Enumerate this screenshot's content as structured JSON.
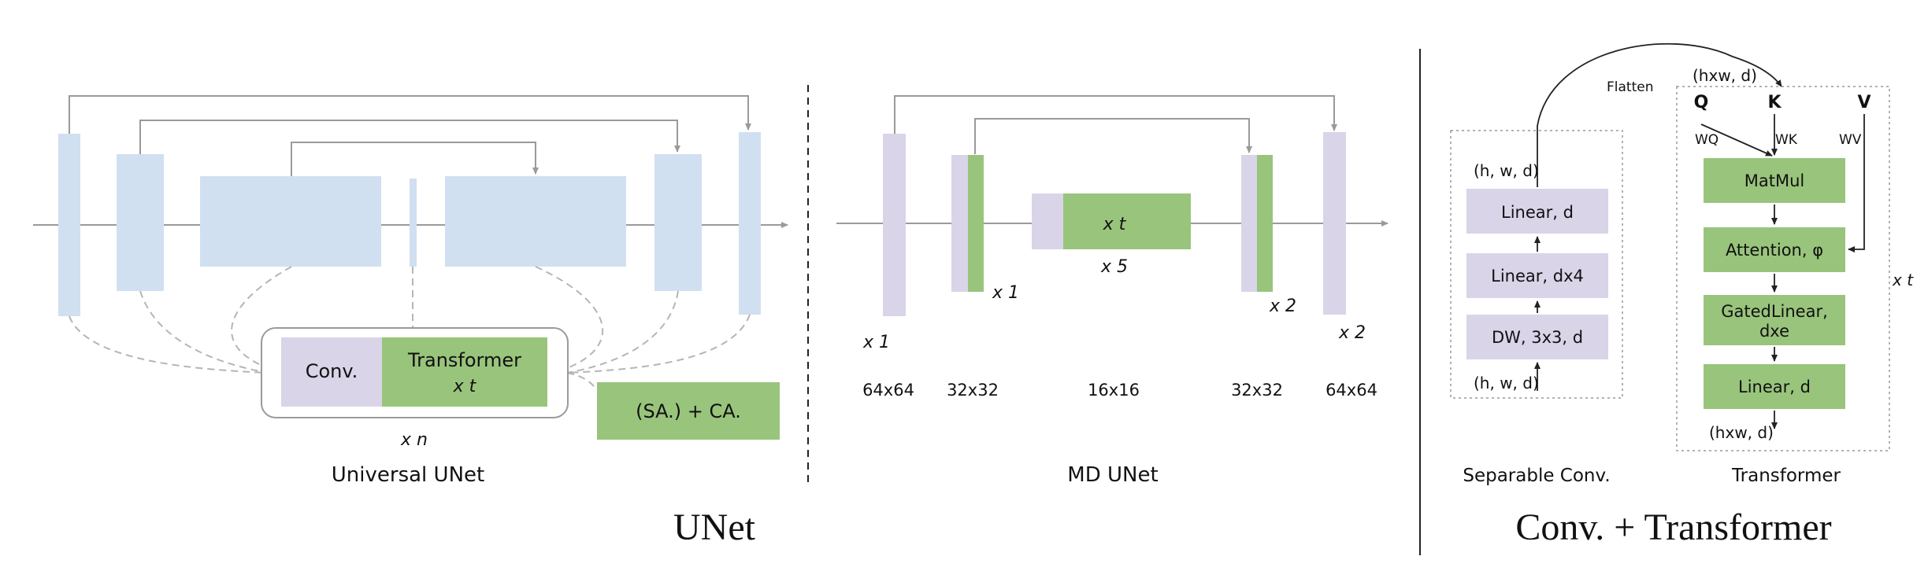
{
  "colors": {
    "blue_block": "#d0e0f1",
    "lavender_block": "#d9d4e8",
    "green_block": "#99c47c",
    "arrow_gray": "#9a9a9a",
    "dashed_gray": "#b5b5b5",
    "divider": "#222222"
  },
  "universal_unet": {
    "caption": "Universal UNet",
    "conv_label": "Conv.",
    "transformer_label": "Transformer",
    "transformer_repeat": "x t",
    "block_repeat": "x n",
    "attention_label": "(SA.) +  CA."
  },
  "md_unet": {
    "caption": "MD UNet",
    "repeats": {
      "enc1": "x 1",
      "enc2": "x 1",
      "mid": "x 5",
      "mid_inner": "x t",
      "dec2": "x 2",
      "dec1": "x 2"
    },
    "resolutions": [
      "64x64",
      "32x32",
      "16x16",
      "32x32",
      "64x64"
    ]
  },
  "unet_section_title": "UNet",
  "conv_transformer": {
    "section_title": "Conv. + Transformer",
    "separable_caption": "Separable Conv.",
    "transformer_caption": "Transformer",
    "flatten_label": "Flatten",
    "sep_input": "(h, w, d)",
    "sep_output": "(h, w, d)",
    "sep_layers": [
      "DW, 3x3, d",
      "Linear,  dx4",
      "Linear, d"
    ],
    "tr_input": "(hxw, d)",
    "tr_output": "(hxw, d)",
    "qkv": [
      "Q",
      "K",
      "V"
    ],
    "weights": [
      "WQ",
      "WK",
      "WV"
    ],
    "tr_layers": [
      "MatMul",
      "Attention, φ",
      "GatedLinear,",
      "dxe",
      "Linear, d"
    ],
    "tr_repeat": "x t"
  }
}
